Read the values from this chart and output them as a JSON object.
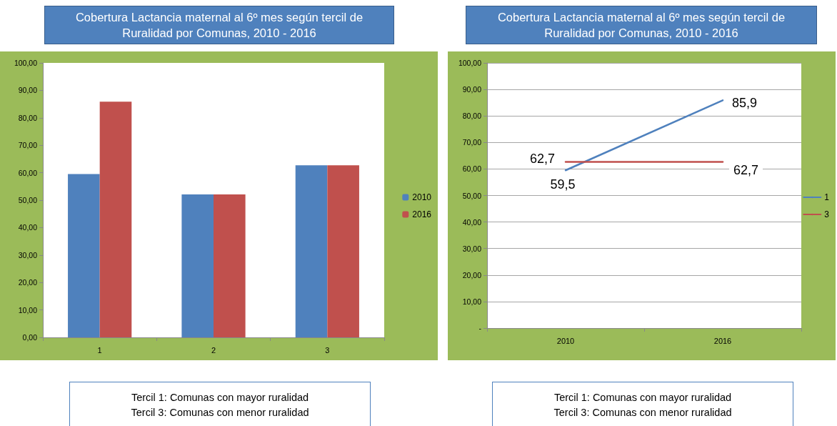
{
  "chart_data": [
    {
      "type": "bar",
      "title": "Cobertura Lactancia maternal al 6º mes según tercil de Ruralidad por Comunas, 2010 - 2016",
      "categories": [
        "1",
        "2",
        "3"
      ],
      "series": [
        {
          "name": "2010",
          "color": "#4f81bd",
          "values": [
            59.5,
            52.1,
            62.7
          ]
        },
        {
          "name": "2016",
          "color": "#c0504d",
          "values": [
            85.9,
            52.1,
            62.7
          ]
        }
      ],
      "ylim": [
        0,
        100
      ],
      "yticks": [
        {
          "value": 0,
          "label": "0,00"
        },
        {
          "value": 10,
          "label": "10,00"
        },
        {
          "value": 20,
          "label": "20,00"
        },
        {
          "value": 30,
          "label": "30,00"
        },
        {
          "value": 40,
          "label": "40,00"
        },
        {
          "value": 50,
          "label": "50,00"
        },
        {
          "value": 60,
          "label": "60,00"
        },
        {
          "value": 70,
          "label": "70,00"
        },
        {
          "value": 80,
          "label": "80,00"
        },
        {
          "value": 90,
          "label": "90,00"
        },
        {
          "value": 100,
          "label": "100,00"
        }
      ],
      "grid": false,
      "legend": "right",
      "annotations": [
        "Tercil 1: Comunas con mayor ruralidad",
        "Tercil 3: Comunas con menor ruralidad"
      ]
    },
    {
      "type": "line",
      "title": "Cobertura Lactancia maternal al 6º mes según tercil de Ruralidad por Comunas, 2010 - 2016",
      "categories": [
        "2010",
        "2016"
      ],
      "series": [
        {
          "name": "1",
          "color": "#4f81bd",
          "values": [
            59.5,
            85.9
          ],
          "value_labels": [
            "59,5",
            "85,9"
          ]
        },
        {
          "name": "3",
          "color": "#c0504d",
          "values": [
            62.7,
            62.7
          ],
          "value_labels": [
            "62,7",
            "62,7"
          ]
        }
      ],
      "ylim": [
        0,
        100
      ],
      "yticks": [
        {
          "value": 0,
          "label": "-"
        },
        {
          "value": 10,
          "label": "10,00"
        },
        {
          "value": 20,
          "label": "20,00"
        },
        {
          "value": 30,
          "label": "30,00"
        },
        {
          "value": 40,
          "label": "40,00"
        },
        {
          "value": 50,
          "label": "50,00"
        },
        {
          "value": 60,
          "label": "60,00"
        },
        {
          "value": 70,
          "label": "70,00"
        },
        {
          "value": 80,
          "label": "80,00"
        },
        {
          "value": 90,
          "label": "90,00"
        },
        {
          "value": 100,
          "label": "100,00"
        }
      ],
      "grid": "y",
      "legend": "right",
      "marker": "none",
      "line_style": "solid",
      "annotations": [
        "Tercil 1: Comunas con mayor ruralidad",
        "Tercil 3: Comunas con menor ruralidad"
      ]
    }
  ]
}
